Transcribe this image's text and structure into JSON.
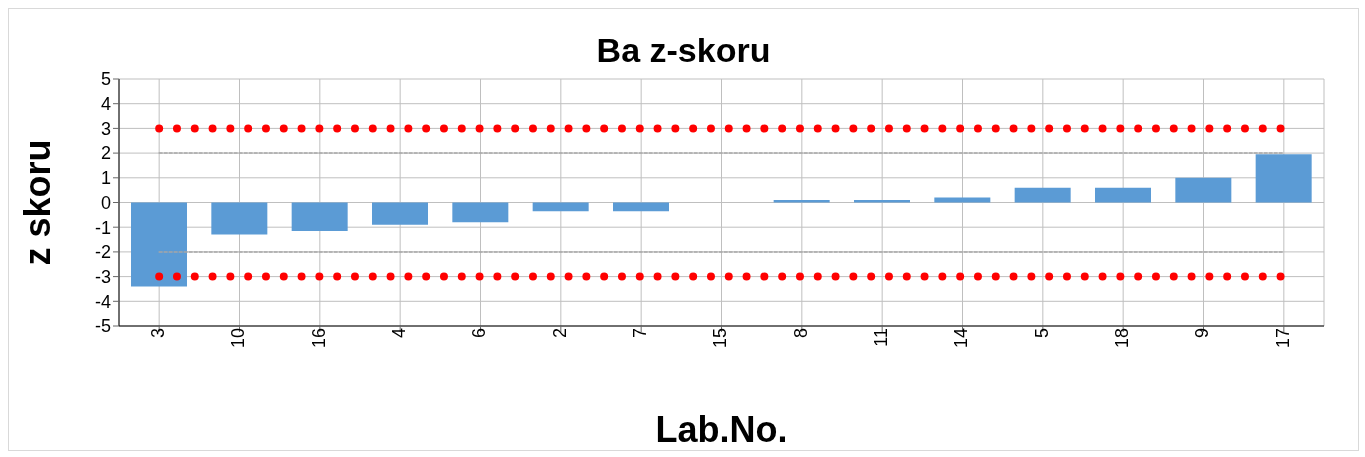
{
  "chart_data": {
    "type": "bar",
    "title": "Ba z-skoru",
    "xlabel": "Lab.No.",
    "ylabel": "z skoru",
    "categories": [
      "3",
      "10",
      "16",
      "4",
      "6",
      "2",
      "7",
      "15",
      "8",
      "11",
      "14",
      "5",
      "18",
      "9",
      "17"
    ],
    "series": [
      {
        "color": "#5b9bd5",
        "values": [
          -3.4,
          -1.3,
          -1.15,
          -0.9,
          -0.8,
          -0.35,
          -0.35,
          0,
          0.1,
          0.1,
          0.2,
          0.6,
          0.6,
          1.0,
          1.95
        ]
      },
      {
        "type": "line",
        "color": "#ff0000",
        "line_style": "dotted",
        "values": [
          3,
          3,
          3,
          3,
          3,
          3,
          3,
          3,
          3,
          3,
          3,
          3,
          3,
          3,
          3
        ]
      },
      {
        "type": "line",
        "color": "#ff0000",
        "line_style": "dotted",
        "values": [
          -3,
          -3,
          -3,
          -3,
          -3,
          -3,
          -3,
          -3,
          -3,
          -3,
          -3,
          -3,
          -3,
          -3,
          -3
        ]
      },
      {
        "type": "line",
        "color": "#a6a6a6",
        "line_style": "dashed",
        "values": [
          2,
          2,
          2,
          2,
          2,
          2,
          2,
          2,
          2,
          2,
          2,
          2,
          2,
          2,
          2
        ]
      },
      {
        "type": "line",
        "color": "#a6a6a6",
        "line_style": "dashed",
        "values": [
          -2,
          -2,
          -2,
          -2,
          -2,
          -2,
          -2,
          -2,
          -2,
          -2,
          -2,
          -2,
          -2,
          -2,
          -2
        ]
      }
    ],
    "ylim": [
      -5,
      5
    ],
    "yticks": [
      -5,
      -4,
      -3,
      -2,
      -1,
      0,
      1,
      2,
      3,
      4,
      5
    ],
    "grid": true
  }
}
